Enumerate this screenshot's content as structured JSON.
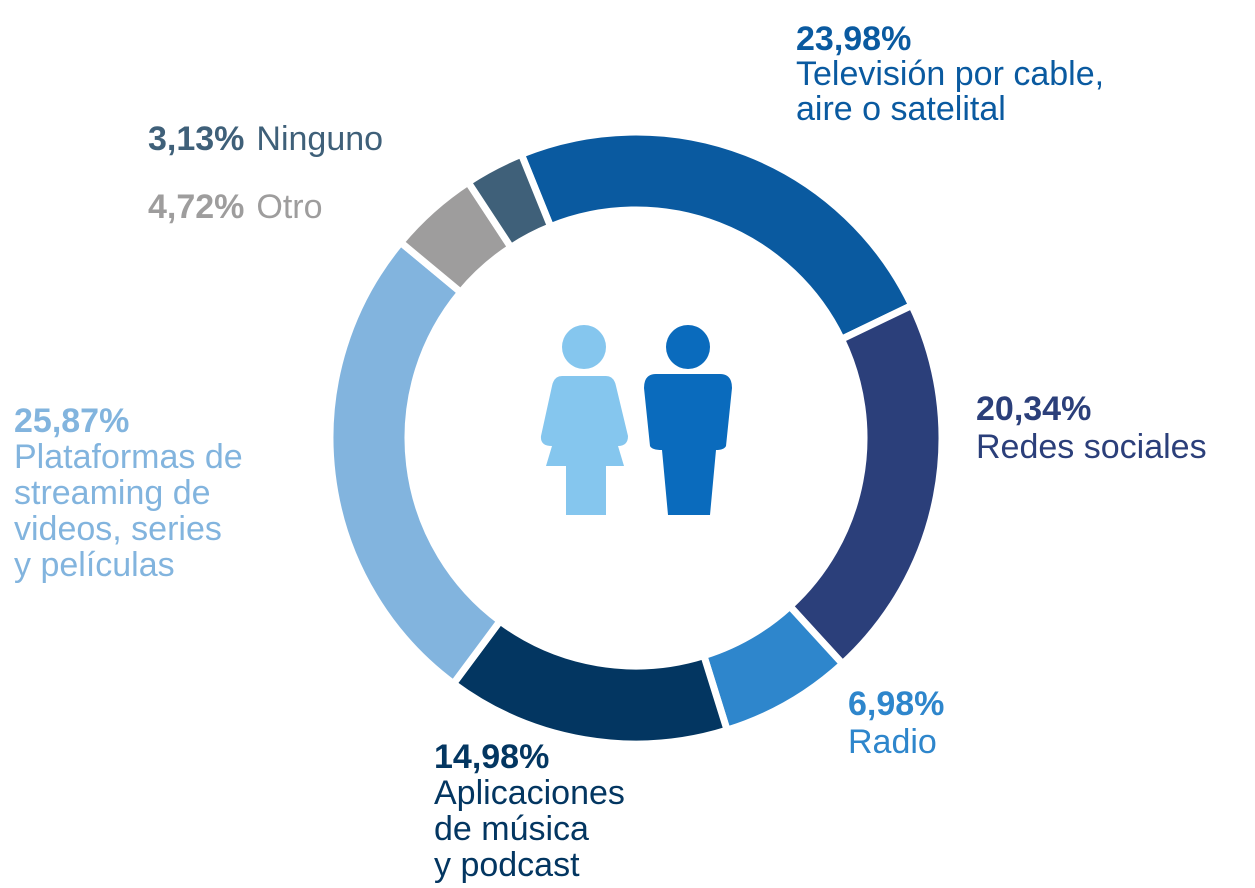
{
  "chart_data": {
    "type": "donut",
    "categories": [
      [
        "Televisión por cable,",
        "aire o satelital"
      ],
      [
        "Redes sociales"
      ],
      [
        "Radio"
      ],
      [
        "Aplicaciones",
        "de música",
        "y podcast"
      ],
      [
        "Plataformas de",
        "streaming de",
        "videos, series",
        "y películas"
      ],
      [
        "Otro"
      ],
      [
        "Ninguno"
      ]
    ],
    "values": [
      23.98,
      20.34,
      6.98,
      14.98,
      25.87,
      4.72,
      3.13
    ],
    "value_labels": [
      "23,98%",
      "20,34%",
      "6,98%",
      "14,98%",
      "25,87%",
      "4,72%",
      "3,13%"
    ],
    "colors": [
      "#0a5aa0",
      "#2b3f7a",
      "#2e86cc",
      "#033661",
      "#82b4de",
      "#9e9d9d",
      "#3f6079"
    ]
  }
}
